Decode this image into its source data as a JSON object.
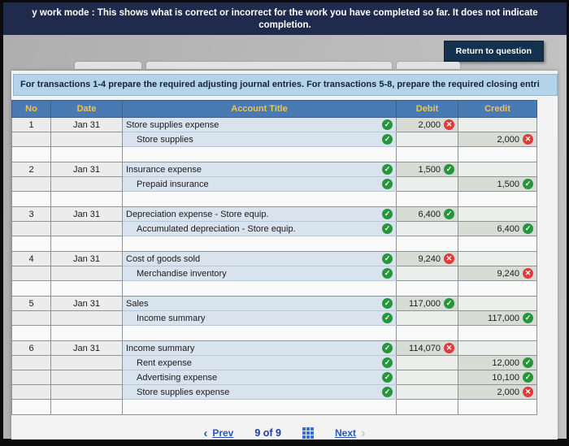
{
  "banner": {
    "line1": "y work mode : This shows what is correct or incorrect for the work you have completed so far. It does not indicate",
    "line2": "completion."
  },
  "toolbar": {
    "return_button": "Return to question"
  },
  "instruction": "For transactions 1-4 prepare the required adjusting journal entries. For transactions 5-8, prepare the required closing entri",
  "icons": {
    "prev_chevron": "‹",
    "next_ghost": "›",
    "check": "✓",
    "cross": "✕"
  },
  "colors": {
    "banner_bg": "#1f2a4d",
    "button_bg": "#14324e",
    "instruction_bg": "#b3d4e8",
    "header_bg": "#4a7ab2",
    "header_text": "#efc34f",
    "correct": "#27953c",
    "wrong": "#de3b3b",
    "link": "#2456c8"
  },
  "table": {
    "headers": [
      "No",
      "Date",
      "Account Title",
      "Debit",
      "Credit"
    ],
    "rows": [
      {
        "no": "1",
        "date": "Jan 31",
        "account": "Store supplies expense",
        "account_status": "correct",
        "debit": "2,000",
        "debit_status": "wrong"
      },
      {
        "account": "Store supplies",
        "indent": true,
        "account_status": "correct",
        "credit": "2,000",
        "credit_status": "wrong"
      },
      {
        "spacer": true
      },
      {
        "no": "2",
        "date": "Jan 31",
        "account": "Insurance expense",
        "account_status": "correct",
        "debit": "1,500",
        "debit_status": "correct"
      },
      {
        "account": "Prepaid insurance",
        "indent": true,
        "account_status": "correct",
        "credit": "1,500",
        "credit_status": "correct"
      },
      {
        "spacer": true
      },
      {
        "no": "3",
        "date": "Jan 31",
        "account": "Depreciation expense - Store equip.",
        "account_status": "correct",
        "debit": "6,400",
        "debit_status": "correct"
      },
      {
        "account": "Accumulated depreciation - Store equip.",
        "indent": true,
        "account_status": "correct",
        "credit": "6,400",
        "credit_status": "correct"
      },
      {
        "spacer": true
      },
      {
        "no": "4",
        "date": "Jan 31",
        "account": "Cost of goods sold",
        "account_status": "correct",
        "debit": "9,240",
        "debit_status": "wrong"
      },
      {
        "account": "Merchandise inventory",
        "indent": true,
        "account_status": "correct",
        "credit": "9,240",
        "credit_status": "wrong"
      },
      {
        "spacer": true
      },
      {
        "no": "5",
        "date": "Jan 31",
        "account": "Sales",
        "account_status": "correct",
        "debit": "117,000",
        "debit_status": "correct"
      },
      {
        "account": "Income summary",
        "indent": true,
        "account_status": "correct",
        "credit": "117,000",
        "credit_status": "correct"
      },
      {
        "spacer": true
      },
      {
        "no": "6",
        "date": "Jan 31",
        "account": "Income summary",
        "account_status": "correct",
        "debit": "114,070",
        "debit_status": "wrong"
      },
      {
        "account": "Rent expense",
        "indent": true,
        "account_status": "correct",
        "credit": "12,000",
        "credit_status": "correct"
      },
      {
        "account": "Advertising expense",
        "indent": true,
        "account_status": "correct",
        "credit": "10,100",
        "credit_status": "correct"
      },
      {
        "account": "Store supplies expense",
        "indent": true,
        "account_status": "correct",
        "credit": "2,000",
        "credit_status": "wrong"
      },
      {
        "spacer": true
      }
    ]
  },
  "pagination": {
    "prev": "Prev",
    "page": "9 of 9",
    "next": "Next"
  }
}
